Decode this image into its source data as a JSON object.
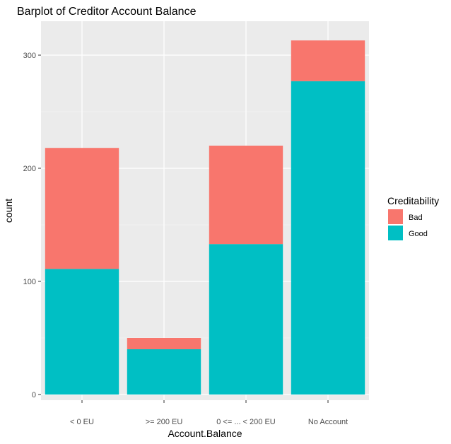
{
  "chart_data": {
    "type": "bar",
    "stacked": true,
    "title": "Barplot of Creditor Account Balance",
    "xlabel": "Account.Balance",
    "ylabel": "count",
    "categories": [
      "< 0 EU",
      ">= 200 EU",
      "0 <= ... < 200 EU",
      "No Account"
    ],
    "series": [
      {
        "name": "Good",
        "values": [
          111,
          40,
          133,
          277
        ]
      },
      {
        "name": "Bad",
        "values": [
          107,
          10,
          87,
          36
        ]
      }
    ],
    "ylim": [
      0,
      325
    ],
    "yticks": [
      0,
      100,
      200,
      300
    ],
    "grid": true,
    "legend": {
      "title": "Creditability",
      "position": "right",
      "entries": [
        "Bad",
        "Good"
      ]
    },
    "colors": {
      "Bad": "#F8766D",
      "Good": "#00BFC4",
      "panel": "#EBEBEB",
      "grid_major": "#FFFFFF",
      "grid_minor": "#F5F5F5"
    }
  }
}
